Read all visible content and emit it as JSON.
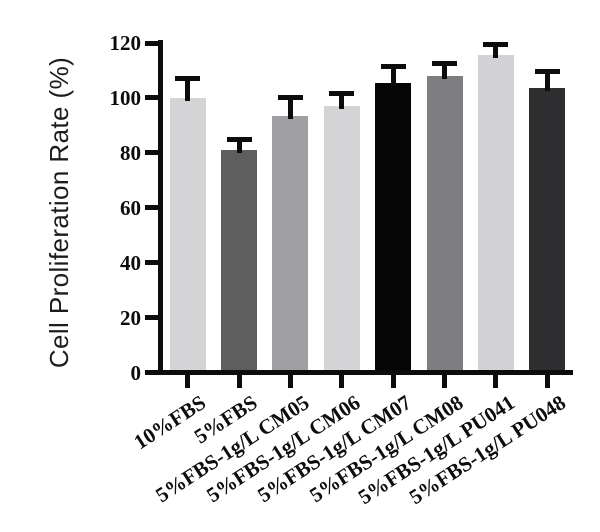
{
  "figure": {
    "background": "#ffffff"
  },
  "chart_data": {
    "type": "bar",
    "title": "",
    "ylabel": "Cell Proliferation Rate (%)",
    "xlabel": "",
    "ylim": [
      0,
      120
    ],
    "yticks": [
      0,
      20,
      40,
      60,
      80,
      100,
      120
    ],
    "categories": [
      "10%FBS",
      "5%FBS",
      "5%FBS-1g/L CM05",
      "5%FBS-1g/L CM06",
      "5%FBS-1g/L CM07",
      "5%FBS-1g/L CM08",
      "5%FBS-1g/L PU041",
      "5%FBS-1g/L PU048"
    ],
    "values": [
      100,
      81,
      93.5,
      97,
      105.5,
      108,
      115.5,
      103.5
    ],
    "errors_upper": [
      7,
      4,
      6.5,
      4.5,
      6,
      4.5,
      4,
      6
    ],
    "bar_colors": [
      "#d4d4d6",
      "#5e5e5e",
      "#a0a0a4",
      "#d4d4d6",
      "#050505",
      "#7e7e80",
      "#d3d3d5",
      "#2e2e30"
    ],
    "error_color": "#0c0c0c",
    "axis_color": "#0c0c0c",
    "grid": false,
    "legend": null
  }
}
